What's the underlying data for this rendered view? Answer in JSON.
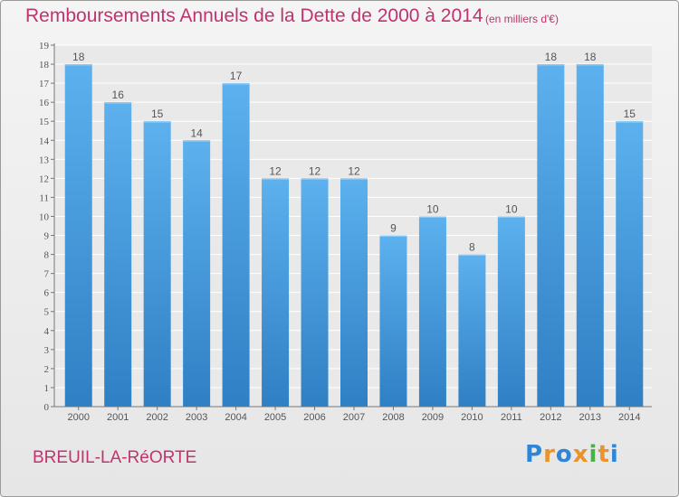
{
  "title": "Remboursements Annuels de la Dette de 2000 à 2014",
  "subtitle": "(en milliers d'€)",
  "location": "BREUIL-LA-RéORTE",
  "logo_text": "Proxiti",
  "colors": {
    "bar": "#4a9de2",
    "title": "#c0336e",
    "grid": "#ffffff",
    "background": "#e9e9e9"
  },
  "chart_data": {
    "type": "bar",
    "title": "Remboursements Annuels de la Dette de 2000 à 2014",
    "subtitle": "(en milliers d'€)",
    "xlabel": "",
    "ylabel": "",
    "categories": [
      "2000",
      "2001",
      "2002",
      "2003",
      "2004",
      "2005",
      "2006",
      "2007",
      "2008",
      "2009",
      "2010",
      "2011",
      "2012",
      "2013",
      "2014"
    ],
    "values": [
      18,
      16,
      15,
      14,
      17,
      12,
      12,
      12,
      9,
      10,
      8,
      10,
      18,
      18,
      15
    ],
    "data_labels": [
      "18",
      "16",
      "15",
      "14",
      "17",
      "12",
      "12",
      "12",
      "9",
      "10",
      "8",
      "10",
      "18",
      "18",
      "15"
    ],
    "ylim": [
      0,
      19
    ],
    "yticks": [
      "0",
      "1",
      "2",
      "3",
      "4",
      "5",
      "6",
      "7",
      "8",
      "9",
      "10",
      "11",
      "12",
      "13",
      "14",
      "15",
      "16",
      "17",
      "18",
      "19"
    ],
    "grid": true
  }
}
